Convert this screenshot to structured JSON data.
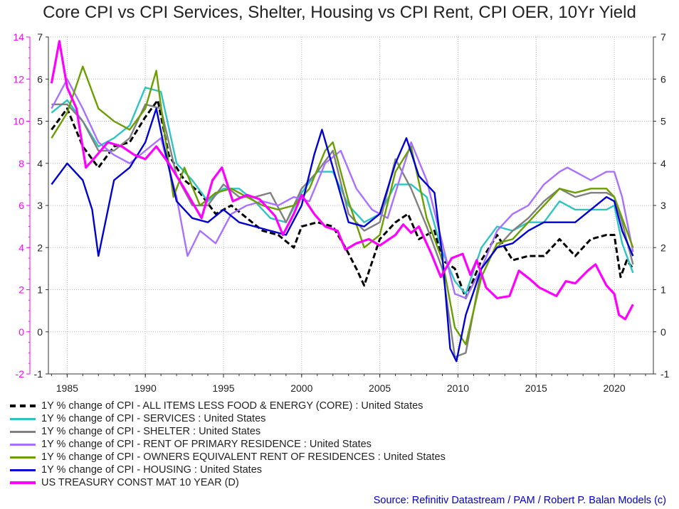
{
  "chart_data": {
    "type": "line",
    "title": "Core CPI vs CPI Services, Shelter, Housing vs CPI Rent, CPI OER, 10Yr Yield",
    "source": "Source: Refinitiv Datastream / PAM / Robert P. Balan Models (c)",
    "x_ticks": [
      "1985",
      "1990",
      "1995",
      "2000",
      "2005",
      "2010",
      "2015",
      "2020"
    ],
    "xlim": [
      1983.8,
      2022.5
    ],
    "left_axis": {
      "ylim": [
        -2,
        14
      ],
      "ticks": [
        "-2",
        "0",
        "2",
        "4",
        "6",
        "8",
        "10",
        "12",
        "14"
      ],
      "color": "#ff00ff"
    },
    "right_axis": {
      "ylim": [
        -1,
        7
      ],
      "ticks": [
        "-1",
        "0",
        "1",
        "2",
        "3",
        "4",
        "5",
        "6",
        "7"
      ]
    },
    "mid_axis_ticks": [
      "-1",
      "0",
      "1",
      "2",
      "3",
      "4",
      "5",
      "6",
      "7"
    ],
    "grid": true,
    "legend_position": "bottom",
    "series": [
      {
        "name": "1Y % change of CPI - ALL ITEMS LESS FOOD & ENERGY (CORE) : United States",
        "color": "#000000",
        "dash": true,
        "axis": "right",
        "x": [
          1984.0,
          1985.0,
          1986.0,
          1987.0,
          1988.0,
          1989.0,
          1990.0,
          1990.8,
          1991.5,
          1992.5,
          1993.5,
          1994.5,
          1995.5,
          1996.5,
          1997.5,
          1998.5,
          1999.5,
          2000.0,
          2001.0,
          2002.0,
          2002.8,
          2003.5,
          2004.0,
          2005.0,
          2006.0,
          2006.8,
          2007.5,
          2008.5,
          2009.0,
          2009.8,
          2010.5,
          2011.5,
          2012.5,
          2013.5,
          2014.5,
          2015.5,
          2016.5,
          2017.5,
          2018.5,
          2019.5,
          2020.0,
          2020.4,
          2020.8,
          2021.2
        ],
        "values": [
          4.8,
          5.3,
          4.4,
          3.9,
          4.4,
          4.5,
          5.1,
          5.5,
          4.2,
          3.6,
          3.3,
          2.8,
          3.0,
          2.7,
          2.4,
          2.3,
          2.0,
          2.5,
          2.6,
          2.5,
          2.0,
          1.5,
          1.1,
          2.2,
          2.6,
          2.8,
          2.2,
          2.4,
          1.7,
          1.5,
          0.8,
          1.7,
          2.3,
          1.7,
          1.8,
          1.8,
          2.2,
          1.8,
          2.2,
          2.3,
          2.3,
          1.3,
          1.7,
          1.5
        ]
      },
      {
        "name": "1Y % change of CPI - SERVICES : United States",
        "color": "#2ec4c4",
        "dash": false,
        "axis": "right",
        "x": [
          1984.0,
          1985.0,
          1986.0,
          1987.0,
          1988.0,
          1989.0,
          1990.0,
          1991.0,
          1992.0,
          1993.0,
          1994.0,
          1995.0,
          1996.0,
          1997.0,
          1998.0,
          1999.0,
          2000.0,
          2001.0,
          2002.0,
          2003.0,
          2004.0,
          2005.0,
          2006.0,
          2007.0,
          2008.0,
          2009.0,
          2009.8,
          2010.5,
          2011.5,
          2012.5,
          2013.5,
          2014.5,
          2015.5,
          2016.5,
          2017.5,
          2018.5,
          2019.5,
          2020.0,
          2020.5,
          2021.2
        ],
        "values": [
          5.2,
          5.5,
          5.0,
          4.4,
          4.6,
          4.9,
          5.8,
          5.7,
          4.0,
          3.6,
          3.1,
          3.4,
          3.4,
          3.1,
          2.7,
          2.6,
          3.3,
          3.8,
          3.8,
          3.0,
          2.6,
          2.8,
          3.5,
          3.5,
          3.2,
          1.9,
          1.2,
          0.9,
          2.0,
          2.5,
          2.4,
          2.6,
          2.6,
          3.1,
          2.9,
          2.9,
          2.9,
          3.0,
          2.1,
          1.4
        ]
      },
      {
        "name": "1Y % change of CPI - SHELTER : United States",
        "color": "#808080",
        "dash": false,
        "axis": "right",
        "x": [
          1984.0,
          1985.0,
          1986.0,
          1987.0,
          1988.0,
          1989.0,
          1990.0,
          1991.0,
          1992.0,
          1993.0,
          1994.0,
          1995.0,
          1996.0,
          1997.0,
          1998.0,
          1999.0,
          2000.0,
          2001.0,
          2002.0,
          2003.0,
          2004.0,
          2005.0,
          2006.0,
          2007.0,
          2008.0,
          2009.0,
          2009.8,
          2010.5,
          2011.5,
          2012.5,
          2013.5,
          2014.5,
          2015.5,
          2016.5,
          2017.5,
          2018.5,
          2019.5,
          2020.0,
          2020.5,
          2021.2
        ],
        "values": [
          5.4,
          5.4,
          5.0,
          4.3,
          4.3,
          4.6,
          5.4,
          5.3,
          3.7,
          3.0,
          3.0,
          3.5,
          3.2,
          3.2,
          3.3,
          2.6,
          3.4,
          3.8,
          4.3,
          2.8,
          2.4,
          2.6,
          4.1,
          3.4,
          2.5,
          1.5,
          -0.6,
          -0.5,
          1.5,
          2.0,
          2.4,
          2.7,
          3.1,
          3.4,
          3.2,
          3.3,
          3.3,
          3.2,
          2.6,
          1.6
        ]
      },
      {
        "name": "1Y % change of CPI - RENT OF PRIMARY RESIDENCE : United States",
        "color": "#a970ff",
        "dash": false,
        "axis": "right",
        "x": [
          1984.0,
          1985.0,
          1986.0,
          1987.0,
          1988.0,
          1989.0,
          1990.0,
          1991.0,
          1992.0,
          1992.7,
          1993.5,
          1994.5,
          1995.5,
          1996.5,
          1997.5,
          1998.5,
          1999.5,
          2000.5,
          2001.5,
          2002.5,
          2003.5,
          2004.5,
          2005.5,
          2006.5,
          2007.0,
          2008.0,
          2009.0,
          2009.8,
          2010.5,
          2011.5,
          2012.5,
          2013.5,
          2014.5,
          2015.5,
          2016.5,
          2017.0,
          2017.5,
          2018.5,
          2019.5,
          2020.0,
          2020.5,
          2021.2
        ],
        "values": [
          5.3,
          6.0,
          5.3,
          4.5,
          4.2,
          4.0,
          4.3,
          4.6,
          3.2,
          1.8,
          2.4,
          2.1,
          2.8,
          3.0,
          3.1,
          3.0,
          3.2,
          3.1,
          4.0,
          4.3,
          3.4,
          2.9,
          2.7,
          3.9,
          4.5,
          3.6,
          2.1,
          0.9,
          0.8,
          1.5,
          2.4,
          2.8,
          3.0,
          3.5,
          3.8,
          3.9,
          3.8,
          3.6,
          3.8,
          3.8,
          3.2,
          1.9
        ]
      },
      {
        "name": "1Y % change of CPI - OWNERS EQUIVALENT RENT OF RESIDENCES : United States",
        "color": "#6b9e00",
        "dash": false,
        "axis": "right",
        "x": [
          1984.0,
          1985.0,
          1986.0,
          1987.0,
          1988.0,
          1989.0,
          1990.0,
          1990.7,
          1991.2,
          1991.8,
          1992.5,
          1993.5,
          1994.5,
          1995.5,
          1996.5,
          1997.5,
          1998.5,
          1999.5,
          2000.5,
          2001.5,
          2002.0,
          2003.0,
          2004.0,
          2005.0,
          2006.0,
          2007.0,
          2008.0,
          2009.0,
          2009.8,
          2010.5,
          2011.5,
          2012.5,
          2013.5,
          2014.5,
          2015.5,
          2016.5,
          2017.5,
          2018.5,
          2019.5,
          2020.0,
          2020.5,
          2021.2
        ],
        "values": [
          4.6,
          5.2,
          6.3,
          5.3,
          5.0,
          4.8,
          5.3,
          6.2,
          4.8,
          3.2,
          3.9,
          3.0,
          3.3,
          3.4,
          3.2,
          3.0,
          2.9,
          3.0,
          3.4,
          4.3,
          4.5,
          3.1,
          2.0,
          2.3,
          3.8,
          4.4,
          2.7,
          1.7,
          0.1,
          -0.3,
          1.3,
          2.1,
          2.2,
          2.6,
          3.0,
          3.4,
          3.3,
          3.4,
          3.4,
          3.2,
          2.7,
          2.0
        ]
      },
      {
        "name": "1Y % change of CPI - HOUSING : United States",
        "color": "#0000d0",
        "dash": false,
        "axis": "right",
        "x": [
          1984.0,
          1985.0,
          1986.0,
          1986.6,
          1987.0,
          1988.0,
          1989.0,
          1990.0,
          1990.7,
          1991.2,
          1992.0,
          1993.0,
          1994.0,
          1995.0,
          1996.0,
          1997.0,
          1998.0,
          1999.0,
          2000.0,
          2000.8,
          2001.3,
          2002.0,
          2003.0,
          2004.0,
          2005.0,
          2006.0,
          2006.7,
          2007.5,
          2008.5,
          2009.0,
          2009.5,
          2009.9,
          2010.5,
          2011.5,
          2012.5,
          2013.5,
          2014.5,
          2015.5,
          2016.5,
          2017.5,
          2018.5,
          2019.5,
          2020.0,
          2020.5,
          2021.2
        ],
        "values": [
          3.5,
          4.0,
          3.6,
          2.9,
          1.8,
          3.6,
          3.9,
          4.5,
          5.3,
          4.4,
          3.1,
          2.7,
          2.6,
          2.9,
          2.6,
          2.5,
          2.4,
          2.3,
          3.0,
          4.2,
          4.8,
          3.9,
          2.6,
          2.5,
          2.8,
          4.0,
          4.6,
          3.7,
          3.3,
          1.8,
          -0.4,
          -0.7,
          0.4,
          1.5,
          2.0,
          2.1,
          2.4,
          2.6,
          2.6,
          2.6,
          2.9,
          3.2,
          3.1,
          2.4,
          1.8
        ]
      },
      {
        "name": "US TREASURY CONST MAT 10 YEAR (D)",
        "color": "#ff00ff",
        "dash": false,
        "axis": "left",
        "x": [
          1984.0,
          1984.5,
          1985.0,
          1985.6,
          1986.2,
          1986.8,
          1987.6,
          1988.5,
          1989.3,
          1990.0,
          1990.7,
          1991.5,
          1992.5,
          1993.6,
          1994.3,
          1994.9,
          1995.6,
          1996.5,
          1997.3,
          1998.3,
          1998.8,
          1999.5,
          2000.0,
          2000.8,
          2001.5,
          2002.3,
          2002.8,
          2003.5,
          2004.3,
          2005.0,
          2006.0,
          2006.5,
          2007.0,
          2007.5,
          2008.3,
          2008.9,
          2009.6,
          2010.3,
          2010.8,
          2011.2,
          2011.8,
          2012.5,
          2013.3,
          2013.9,
          2014.6,
          2015.2,
          2016.3,
          2016.9,
          2017.5,
          2018.3,
          2018.8,
          2019.5,
          2020.0,
          2020.3,
          2020.7,
          2021.2
        ],
        "values": [
          11.8,
          13.8,
          11.6,
          10.6,
          7.8,
          8.3,
          9.0,
          8.8,
          8.4,
          8.2,
          8.8,
          8.0,
          6.8,
          5.4,
          7.2,
          7.8,
          6.2,
          6.5,
          6.3,
          5.5,
          4.6,
          5.6,
          6.5,
          5.6,
          5.0,
          4.8,
          3.9,
          4.2,
          4.4,
          4.1,
          4.6,
          5.1,
          4.7,
          5.0,
          3.7,
          2.6,
          3.5,
          3.7,
          2.7,
          3.4,
          2.1,
          1.6,
          1.7,
          2.9,
          2.5,
          2.1,
          1.7,
          2.4,
          2.3,
          2.9,
          3.2,
          2.2,
          1.8,
          0.8,
          0.6,
          1.3
        ]
      }
    ]
  }
}
